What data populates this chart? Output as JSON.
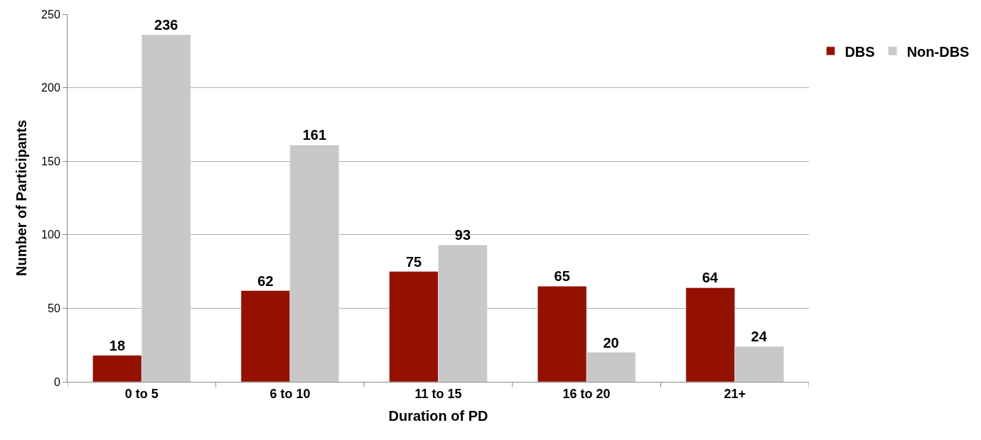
{
  "chart_data": {
    "type": "bar",
    "xlabel": "Duration of PD",
    "ylabel": "Number of Participants",
    "categories": [
      "0 to 5",
      "6 to 10",
      "11 to 15",
      "16 to 20",
      "21+"
    ],
    "series": [
      {
        "name": "DBS",
        "color": "#941100",
        "values": [
          18,
          62,
          75,
          65,
          64
        ]
      },
      {
        "name": "Non-DBS",
        "color": "#c8c8c8",
        "values": [
          236,
          161,
          93,
          20,
          24
        ]
      }
    ],
    "ylim": [
      0,
      250
    ],
    "yticks": [
      0,
      50,
      100,
      150,
      200,
      250
    ],
    "grid": "y",
    "legend": "top right",
    "data_labels": true
  }
}
